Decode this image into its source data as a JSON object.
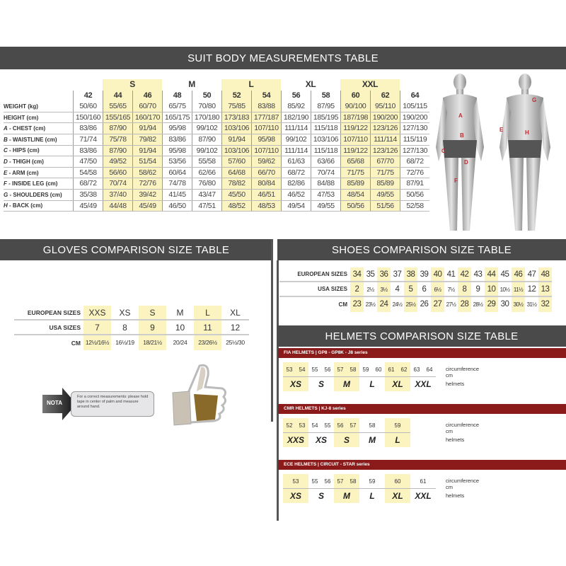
{
  "suit": {
    "title": "SUIT BODY MEASUREMENTS TABLE",
    "groups": [
      {
        "label": "",
        "span": 1,
        "hi": false
      },
      {
        "label": "S",
        "span": 2,
        "hi": true
      },
      {
        "label": "M",
        "span": 2,
        "hi": false
      },
      {
        "label": "L",
        "span": 2,
        "hi": true
      },
      {
        "label": "XL",
        "span": 2,
        "hi": false
      },
      {
        "label": "XXL",
        "span": 2,
        "hi": true
      },
      {
        "label": "",
        "span": 1,
        "hi": false
      }
    ],
    "sizes": [
      "42",
      "44",
      "46",
      "48",
      "50",
      "52",
      "54",
      "56",
      "58",
      "60",
      "62",
      "64"
    ],
    "highlight_sizes": [
      "44",
      "46",
      "52",
      "54",
      "60",
      "62"
    ],
    "rows": [
      {
        "letter": "",
        "label": "WEIGHT (kg)",
        "values": [
          "50/60",
          "55/65",
          "60/70",
          "65/75",
          "70/80",
          "75/85",
          "83/88",
          "85/92",
          "87/95",
          "90/100",
          "95/110",
          "105/115"
        ]
      },
      {
        "letter": "",
        "label": "HEIGHT (cm)",
        "values": [
          "150/160",
          "155/165",
          "160/170",
          "165/175",
          "170/180",
          "173/183",
          "177/187",
          "182/190",
          "185/195",
          "187/198",
          "190/200",
          "190/200"
        ]
      },
      {
        "letter": "A",
        "label": "CHEST (cm)",
        "values": [
          "83/86",
          "87/90",
          "91/94",
          "95/98",
          "99/102",
          "103/106",
          "107/110",
          "111/114",
          "115/118",
          "119/122",
          "123/126",
          "127/130"
        ]
      },
      {
        "letter": "B",
        "label": "WAISTLINE (cm)",
        "values": [
          "71/74",
          "75/78",
          "79/82",
          "83/86",
          "87/90",
          "91/94",
          "95/98",
          "99/102",
          "103/106",
          "107/110",
          "111/114",
          "115/119"
        ]
      },
      {
        "letter": "C",
        "label": "HIPS (cm)",
        "values": [
          "83/86",
          "87/90",
          "91/94",
          "95/98",
          "99/102",
          "103/106",
          "107/110",
          "111/114",
          "115/118",
          "119/122",
          "123/126",
          "127/130"
        ]
      },
      {
        "letter": "D",
        "label": "THIGH (cm)",
        "values": [
          "47/50",
          "49/52",
          "51/54",
          "53/56",
          "55/58",
          "57/60",
          "59/62",
          "61/63",
          "63/66",
          "65/68",
          "67/70",
          "68/72"
        ]
      },
      {
        "letter": "E",
        "label": "ARM (cm)",
        "values": [
          "54/58",
          "56/60",
          "58/62",
          "60/64",
          "62/66",
          "64/68",
          "66/70",
          "68/72",
          "70/74",
          "71/75",
          "71/75",
          "72/76"
        ]
      },
      {
        "letter": "F",
        "label": "INSIDE LEG (cm)",
        "values": [
          "68/72",
          "70/74",
          "72/76",
          "74/78",
          "76/80",
          "78/82",
          "80/84",
          "82/86",
          "84/88",
          "85/89",
          "85/89",
          "87/91"
        ]
      },
      {
        "letter": "G",
        "label": "SHOULDERS (cm)",
        "values": [
          "35/38",
          "37/40",
          "39/42",
          "41/45",
          "43/47",
          "45/50",
          "46/51",
          "46/52",
          "47/53",
          "48/54",
          "49/55",
          "50/56"
        ]
      },
      {
        "letter": "H",
        "label": "BACK (cm)",
        "values": [
          "45/49",
          "44/48",
          "45/49",
          "46/50",
          "47/51",
          "48/52",
          "48/53",
          "49/54",
          "49/55",
          "50/56",
          "51/56",
          "52/58"
        ]
      }
    ],
    "figure_letters_front": [
      "A",
      "B",
      "C",
      "D",
      "F"
    ],
    "figure_letters_back": [
      "G",
      "E",
      "H"
    ]
  },
  "gloves": {
    "title": "GLOVES COMPARISON SIZE TABLE",
    "rows": [
      {
        "label": "EUROPEAN SIZES",
        "values": [
          "XXS",
          "XS",
          "S",
          "M",
          "L",
          "XL"
        ]
      },
      {
        "label": "USA SIZES",
        "values": [
          "7",
          "8",
          "9",
          "10",
          "11",
          "12"
        ]
      },
      {
        "label": "CM",
        "values": [
          "12½/16½",
          "16½/19",
          "18/21½",
          "20/24",
          "23/26½",
          "25½/30"
        ]
      }
    ],
    "highlight_cols": [
      0,
      2,
      4
    ],
    "nota": {
      "label": "NOTA",
      "text": "For a correct measurements: please hold tape in center of palm and measure around hand."
    }
  },
  "shoes": {
    "title": "SHOES COMPARISON SIZE TABLE",
    "rows": [
      {
        "label": "EUROPEAN SIZES",
        "values": [
          "34",
          "35",
          "36",
          "37",
          "38",
          "39",
          "40",
          "41",
          "42",
          "43",
          "44",
          "45",
          "46",
          "47",
          "48"
        ]
      },
      {
        "label": "USA SIZES",
        "values": [
          "2",
          "2½",
          "3½",
          "4",
          "5",
          "6",
          "6½",
          "7½",
          "8",
          "9",
          "10",
          "10½",
          "11½",
          "12",
          "13"
        ]
      },
      {
        "label": "CM",
        "values": [
          "23",
          "23½",
          "24",
          "24½",
          "25½",
          "26",
          "27",
          "27½",
          "28",
          "28½",
          "29",
          "30",
          "30½",
          "31½",
          "32"
        ]
      }
    ],
    "highlight_cols": [
      0,
      2,
      4,
      6,
      8,
      10,
      12,
      14
    ]
  },
  "helmets": {
    "title": "HELMETS COMPARISON SIZE TABLE",
    "circumference_label": "circumference cm",
    "helmets_label": "helmets",
    "series": [
      {
        "name": "FIA HELMETS  |  GP8 - GP8K - J8 series",
        "groups": [
          {
            "size": "XS",
            "nums": [
              "53",
              "54"
            ]
          },
          {
            "size": "S",
            "nums": [
              "55",
              "56"
            ]
          },
          {
            "size": "M",
            "nums": [
              "57",
              "58"
            ]
          },
          {
            "size": "L",
            "nums": [
              "59",
              "60"
            ]
          },
          {
            "size": "XL",
            "nums": [
              "61",
              "62"
            ]
          },
          {
            "size": "XXL",
            "nums": [
              "63",
              "64"
            ]
          }
        ]
      },
      {
        "name": "CMR HELMETS  |  KJ-8 series",
        "groups": [
          {
            "size": "XXS",
            "nums": [
              "52",
              "53"
            ]
          },
          {
            "size": "XS",
            "nums": [
              "54",
              "55"
            ]
          },
          {
            "size": "S",
            "nums": [
              "56",
              "57"
            ]
          },
          {
            "size": "M",
            "nums": [
              "58"
            ]
          },
          {
            "size": "L",
            "nums": [
              "59"
            ]
          }
        ]
      },
      {
        "name": "ECE HELMETS  |  CIRCUIT - STAR series",
        "groups": [
          {
            "size": "XS",
            "nums": [
              "53"
            ]
          },
          {
            "size": "S",
            "nums": [
              "55",
              "56"
            ]
          },
          {
            "size": "M",
            "nums": [
              "57",
              "58"
            ]
          },
          {
            "size": "L",
            "nums": [
              "59"
            ]
          },
          {
            "size": "XL",
            "nums": [
              "60"
            ]
          },
          {
            "size": "XXL",
            "nums": [
              "61"
            ]
          }
        ]
      }
    ]
  },
  "colors": {
    "banner": "#4a4a4a",
    "highlight": "#fbf3c0",
    "helmet_bar": "#8b1a1a",
    "figure_letters": "#c0282d"
  }
}
